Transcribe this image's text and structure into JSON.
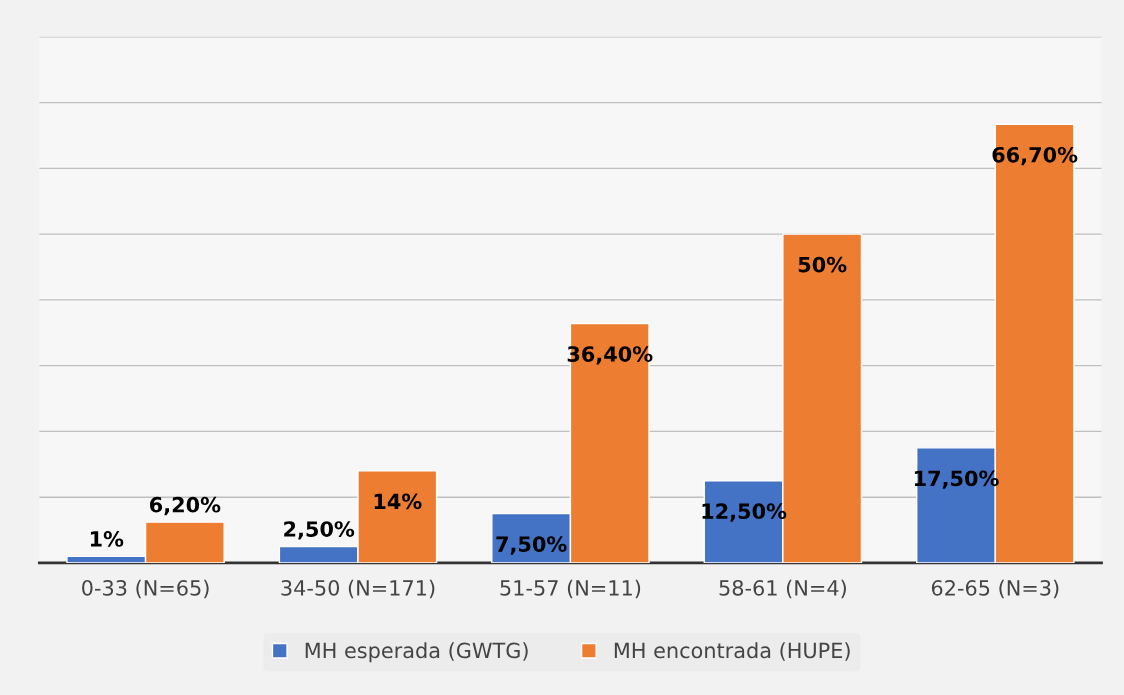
{
  "chart_data": {
    "type": "bar",
    "categories": [
      "0-33 (N=65)",
      "34-50 (N=171)",
      "51-57 (N=11)",
      "58-61 (N=4)",
      "62-65 (N=3)"
    ],
    "series": [
      {
        "name": "MH esperada (GWTG)",
        "color": "#4472c4",
        "values": [
          1,
          2.5,
          7.5,
          12.5,
          17.5
        ],
        "value_labels": [
          "1%",
          "2,50%",
          "7,50%",
          "12,50%",
          "17,50%"
        ]
      },
      {
        "name": "MH encontrada (HUPE)",
        "color": "#ed7d31",
        "values": [
          6.2,
          14,
          36.4,
          50,
          66.7
        ],
        "value_labels": [
          "6,20%",
          "14%",
          "36,40%",
          "50%",
          "66,70%"
        ]
      }
    ],
    "ylim": [
      0,
      80
    ],
    "yticks": [
      {
        "value": 0,
        "label": null
      },
      {
        "value": 10,
        "label": null
      },
      {
        "value": 20,
        "label": null
      },
      {
        "value": 30,
        "label": null
      },
      {
        "value": 40,
        "label": null
      },
      {
        "value": 50,
        "label": null
      },
      {
        "value": 60,
        "label": null
      },
      {
        "value": 70,
        "label": null
      },
      {
        "value": 80,
        "label": null
      }
    ],
    "tick_labels": "x",
    "grid": "y",
    "legend": "bottom"
  }
}
